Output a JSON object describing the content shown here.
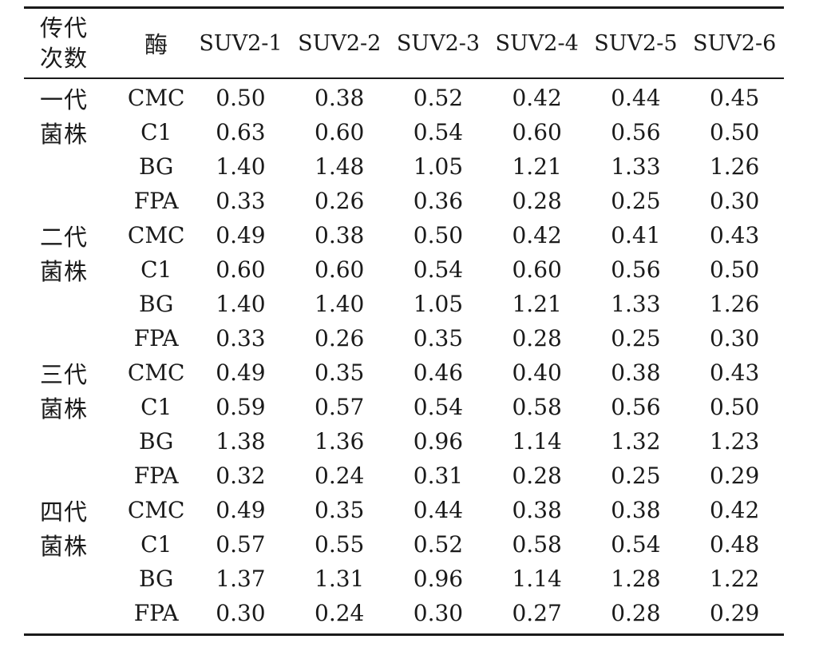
{
  "table": {
    "header": {
      "generation_line1": "传代",
      "generation_line2": "次数",
      "enzyme": "酶",
      "strains": [
        "SUV2-1",
        "SUV2-2",
        "SUV2-3",
        "SUV2-4",
        "SUV2-5",
        "SUV2-6"
      ]
    },
    "rows": [
      {
        "gen": "一代",
        "enzyme": "CMC",
        "values": [
          "0.50",
          "0.38",
          "0.52",
          "0.42",
          "0.44",
          "0.45"
        ]
      },
      {
        "gen": "菌株",
        "enzyme": "C1",
        "values": [
          "0.63",
          "0.60",
          "0.54",
          "0.60",
          "0.56",
          "0.50"
        ]
      },
      {
        "gen": "",
        "enzyme": "BG",
        "values": [
          "1.40",
          "1.48",
          "1.05",
          "1.21",
          "1.33",
          "1.26"
        ]
      },
      {
        "gen": "",
        "enzyme": "FPA",
        "values": [
          "0.33",
          "0.26",
          "0.36",
          "0.28",
          "0.25",
          "0.30"
        ]
      },
      {
        "gen": "二代",
        "enzyme": "CMC",
        "values": [
          "0.49",
          "0.38",
          "0.50",
          "0.42",
          "0.41",
          "0.43"
        ]
      },
      {
        "gen": "菌株",
        "enzyme": "C1",
        "values": [
          "0.60",
          "0.60",
          "0.54",
          "0.60",
          "0.56",
          "0.50"
        ]
      },
      {
        "gen": "",
        "enzyme": "BG",
        "values": [
          "1.40",
          "1.40",
          "1.05",
          "1.21",
          "1.33",
          "1.26"
        ]
      },
      {
        "gen": "",
        "enzyme": "FPA",
        "values": [
          "0.33",
          "0.26",
          "0.35",
          "0.28",
          "0.25",
          "0.30"
        ]
      },
      {
        "gen": "三代",
        "enzyme": "CMC",
        "values": [
          "0.49",
          "0.35",
          "0.46",
          "0.40",
          "0.38",
          "0.43"
        ]
      },
      {
        "gen": "菌株",
        "enzyme": "C1",
        "values": [
          "0.59",
          "0.57",
          "0.54",
          "0.58",
          "0.56",
          "0.50"
        ]
      },
      {
        "gen": "",
        "enzyme": "BG",
        "values": [
          "1.38",
          "1.36",
          "0.96",
          "1.14",
          "1.32",
          "1.23"
        ]
      },
      {
        "gen": "",
        "enzyme": "FPA",
        "values": [
          "0.32",
          "0.24",
          "0.31",
          "0.28",
          "0.25",
          "0.29"
        ]
      },
      {
        "gen": "四代",
        "enzyme": "CMC",
        "values": [
          "0.49",
          "0.35",
          "0.44",
          "0.38",
          "0.38",
          "0.42"
        ]
      },
      {
        "gen": "菌株",
        "enzyme": "C1",
        "values": [
          "0.57",
          "0.55",
          "0.52",
          "0.58",
          "0.54",
          "0.48"
        ]
      },
      {
        "gen": "",
        "enzyme": "BG",
        "values": [
          "1.37",
          "1.31",
          "0.96",
          "1.14",
          "1.28",
          "1.22"
        ]
      },
      {
        "gen": "",
        "enzyme": "FPA",
        "values": [
          "0.30",
          "0.24",
          "0.30",
          "0.27",
          "0.28",
          "0.29"
        ]
      }
    ]
  }
}
